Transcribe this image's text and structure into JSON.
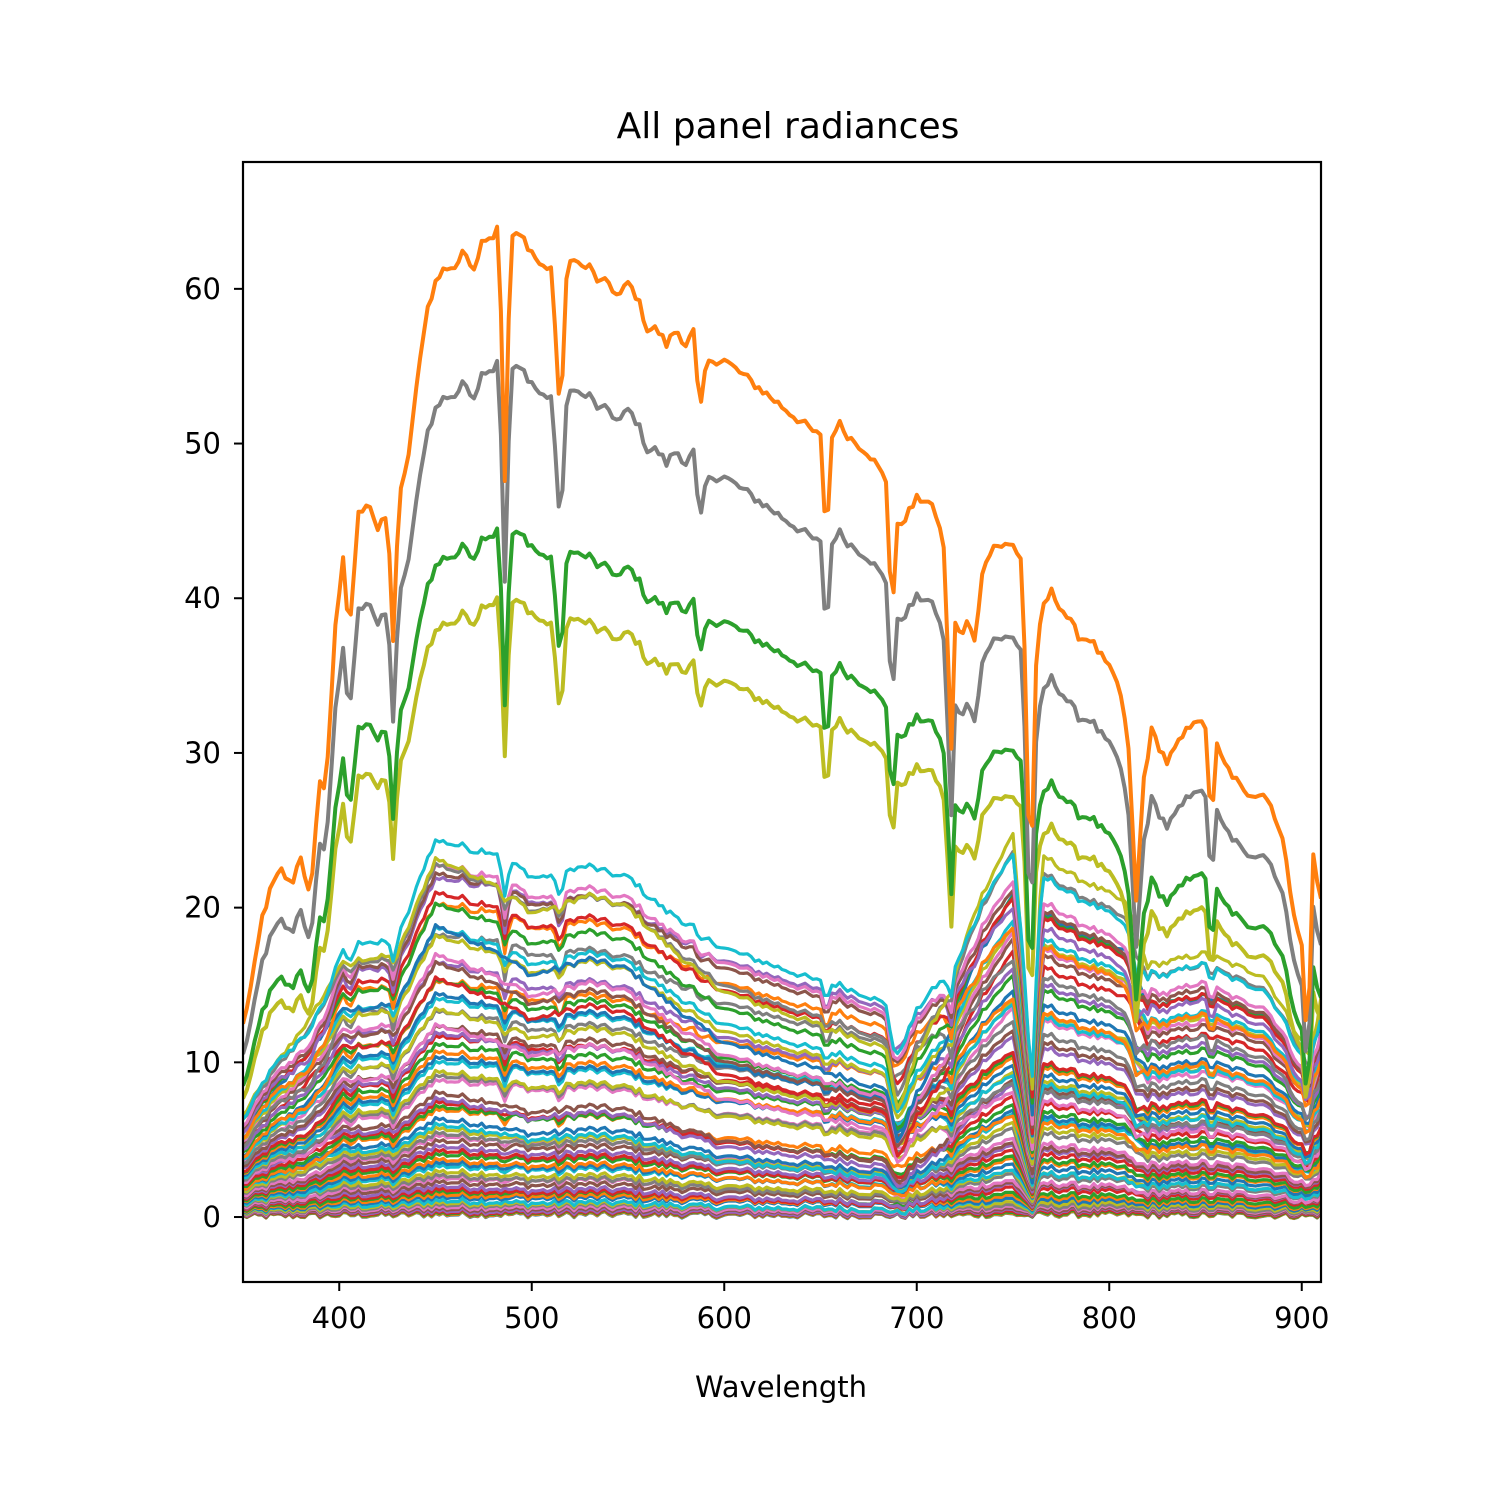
{
  "chart_data": {
    "type": "line",
    "title": "All panel radiances",
    "xlabel": "Wavelength",
    "ylabel": "",
    "xlim": [
      350,
      910
    ],
    "ylim": [
      -4.2,
      68.2
    ],
    "xticks": [
      400,
      500,
      600,
      700,
      800,
      900
    ],
    "yticks": [
      0,
      10,
      20,
      30,
      40,
      50,
      60
    ],
    "grid": false,
    "legend": "none",
    "colors": [
      "#1f77b4",
      "#ff7f0e",
      "#2ca02c",
      "#d62728",
      "#9467bd",
      "#8c564b",
      "#e377c2",
      "#7f7f7f",
      "#bcbd22",
      "#17becf"
    ],
    "shape": {
      "x": [
        350,
        355,
        360,
        365,
        370,
        375,
        380,
        385,
        390,
        393,
        398,
        402,
        405,
        410,
        415,
        420,
        425,
        428,
        431,
        435,
        440,
        445,
        450,
        455,
        460,
        465,
        470,
        475,
        480,
        483,
        486,
        489,
        495,
        500,
        505,
        510,
        515,
        518,
        521,
        525,
        530,
        535,
        540,
        545,
        550,
        555,
        560,
        565,
        570,
        575,
        580,
        585,
        587,
        589,
        593,
        600,
        610,
        620,
        630,
        640,
        650,
        653,
        656,
        659,
        665,
        675,
        685,
        687,
        689,
        695,
        700,
        705,
        710,
        714,
        718,
        720,
        723,
        726,
        730,
        735,
        740,
        745,
        750,
        755,
        759,
        762,
        765,
        770,
        775,
        780,
        785,
        790,
        795,
        800,
        805,
        810,
        814,
        818,
        822,
        826,
        830,
        835,
        840,
        845,
        850,
        853,
        856,
        859,
        865,
        870,
        875,
        880,
        885,
        890,
        895,
        900,
        903,
        906,
        910
      ],
      "y": [
        12,
        15,
        19,
        21,
        22,
        21,
        23,
        20,
        28,
        27,
        38,
        42,
        37,
        45,
        46,
        44,
        45,
        37,
        46,
        48,
        53,
        58,
        60,
        61,
        61,
        62,
        61,
        63,
        63,
        64,
        47,
        63,
        63,
        62,
        61,
        61,
        51,
        60,
        62,
        61,
        61,
        60,
        60,
        59,
        60,
        59,
        57,
        57,
        56,
        57,
        56,
        57,
        50,
        54,
        55,
        55,
        54,
        53,
        52,
        51,
        50,
        43,
        50,
        51,
        50,
        49,
        47,
        36,
        44,
        45,
        46,
        46,
        45,
        43,
        30,
        38,
        37,
        38,
        37,
        42,
        43,
        43,
        43,
        42,
        20,
        35,
        39,
        40,
        39,
        38,
        37,
        37,
        36,
        35,
        34,
        30,
        20,
        28,
        31,
        30,
        29,
        30,
        31,
        32,
        31,
        25,
        30,
        29,
        28,
        27,
        27,
        27,
        26,
        24,
        20,
        17,
        10,
        23,
        20
      ]
    },
    "series_profiles": [
      {
        "scale": 1.0,
        "offset": 0.4
      },
      {
        "scale": 0.87,
        "offset": 0.0
      },
      {
        "scale": 0.7,
        "offset": 0.0
      },
      {
        "scale": 0.63,
        "offset": 0.0
      }
    ]
  }
}
